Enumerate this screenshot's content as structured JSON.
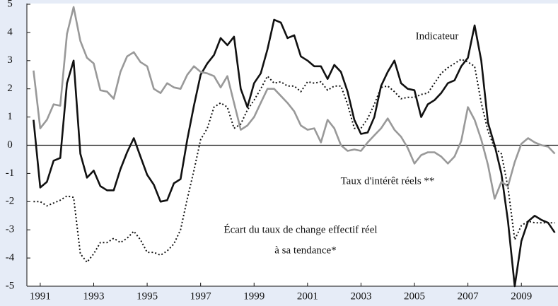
{
  "chart_data": {
    "type": "line",
    "annotations": [
      "Indicateur",
      "Taux d'intérêt réels **",
      "Écart du taux de change effectif réel",
      "à sa tendance*"
    ],
    "x": [
      1990.75,
      1991,
      1991.25,
      1991.5,
      1991.75,
      1992,
      1992.25,
      1992.5,
      1992.75,
      1993,
      1993.25,
      1993.5,
      1993.75,
      1994,
      1994.25,
      1994.5,
      1994.75,
      1995,
      1995.25,
      1995.5,
      1995.75,
      1996,
      1996.25,
      1996.5,
      1996.75,
      1997,
      1997.25,
      1997.5,
      1997.75,
      1998,
      1998.25,
      1998.5,
      1998.75,
      1999,
      1999.25,
      1999.5,
      1999.75,
      2000,
      2000.25,
      2000.5,
      2000.75,
      2001,
      2001.25,
      2001.5,
      2001.75,
      2002,
      2002.25,
      2002.5,
      2002.75,
      2003,
      2003.25,
      2003.5,
      2003.75,
      2004,
      2004.25,
      2004.5,
      2004.75,
      2005,
      2005.25,
      2005.5,
      2005.75,
      2006,
      2006.25,
      2006.5,
      2006.75,
      2007,
      2007.25,
      2007.5,
      2007.75,
      2008,
      2008.25,
      2008.5,
      2008.75,
      2009,
      2009.25,
      2009.5,
      2009.75,
      2010,
      2010.25
    ],
    "series": [
      {
        "name": "Indicateur",
        "color": "#111111",
        "style": "solid",
        "values": [
          0.9,
          -1.5,
          -1.3,
          -0.55,
          -0.45,
          2.2,
          3.0,
          -0.3,
          -1.15,
          -0.9,
          -1.45,
          -1.6,
          -1.6,
          -0.85,
          -0.25,
          0.25,
          -0.4,
          -1.05,
          -1.4,
          -2.0,
          -1.95,
          -1.35,
          -1.2,
          0.2,
          1.4,
          2.5,
          2.9,
          3.2,
          3.8,
          3.55,
          3.85,
          2.0,
          1.35,
          2.2,
          2.55,
          3.4,
          4.45,
          4.35,
          3.8,
          3.9,
          3.15,
          3.0,
          2.8,
          2.8,
          2.35,
          2.85,
          2.6,
          1.9,
          0.9,
          0.4,
          0.45,
          1.0,
          2.1,
          2.6,
          3.0,
          2.2,
          2.0,
          1.95,
          1.0,
          1.45,
          1.6,
          1.85,
          2.2,
          2.3,
          2.8,
          3.1,
          4.25,
          3.0,
          0.8,
          0.0,
          -1.0,
          -2.7,
          -5.0,
          -3.4,
          -2.7,
          -2.5,
          -2.65,
          -2.75,
          -3.1
        ]
      },
      {
        "name": "Taux d'intérêt réels **",
        "color": "#999999",
        "style": "solid",
        "values": [
          2.65,
          0.6,
          0.9,
          1.45,
          1.4,
          3.95,
          4.9,
          3.7,
          3.1,
          2.9,
          1.95,
          1.9,
          1.65,
          2.6,
          3.15,
          3.3,
          2.95,
          2.8,
          2.0,
          1.85,
          2.2,
          2.05,
          2.0,
          2.5,
          2.8,
          2.6,
          2.55,
          2.45,
          2.05,
          2.45,
          1.5,
          0.55,
          0.7,
          1.0,
          1.5,
          2.0,
          2.0,
          1.75,
          1.5,
          1.2,
          0.7,
          0.55,
          0.6,
          0.1,
          0.9,
          0.6,
          0.0,
          -0.2,
          -0.15,
          -0.2,
          0.1,
          0.35,
          0.6,
          0.95,
          0.55,
          0.3,
          -0.1,
          -0.65,
          -0.35,
          -0.25,
          -0.25,
          -0.4,
          -0.65,
          -0.4,
          0.15,
          1.35,
          0.9,
          0.2,
          -0.7,
          -1.9,
          -1.3,
          -1.45,
          -0.6,
          0.05,
          0.25,
          0.1,
          0.0,
          -0.05,
          -0.3
        ]
      },
      {
        "name": "Écart du taux de change effectif réel à sa tendance*",
        "color": "#111111",
        "style": "dotted",
        "values": [
          -2.0,
          -2.0,
          -2.15,
          -2.05,
          -1.95,
          -1.8,
          -1.85,
          -3.85,
          -4.15,
          -3.85,
          -3.45,
          -3.45,
          -3.3,
          -3.45,
          -3.3,
          -3.05,
          -3.35,
          -3.8,
          -3.8,
          -3.9,
          -3.75,
          -3.5,
          -3.0,
          -1.9,
          -0.9,
          0.2,
          0.6,
          1.35,
          1.5,
          1.35,
          0.6,
          0.75,
          1.25,
          1.6,
          2.0,
          2.45,
          2.2,
          2.25,
          2.1,
          2.1,
          1.9,
          2.25,
          2.2,
          2.25,
          1.95,
          2.1,
          2.1,
          1.45,
          0.6,
          0.6,
          0.95,
          1.45,
          2.05,
          2.1,
          1.9,
          1.65,
          1.7,
          1.7,
          1.8,
          1.85,
          2.2,
          2.55,
          2.75,
          2.9,
          3.05,
          2.95,
          2.8,
          1.5,
          0.5,
          -0.1,
          -0.3,
          -1.5,
          -3.35,
          -2.85,
          -2.7,
          -2.75,
          -2.75,
          -2.75,
          -2.75
        ]
      }
    ],
    "xlim": [
      1990.5,
      2010.37
    ],
    "xticks": [
      1991,
      1993,
      1995,
      1997,
      1999,
      2001,
      2003,
      2005,
      2007,
      2009
    ],
    "ylim": [
      -5,
      5
    ],
    "yticks": [
      -5,
      -4,
      -3,
      -2,
      -1,
      0,
      1,
      2,
      3,
      4,
      5
    ],
    "zero_line": true
  }
}
